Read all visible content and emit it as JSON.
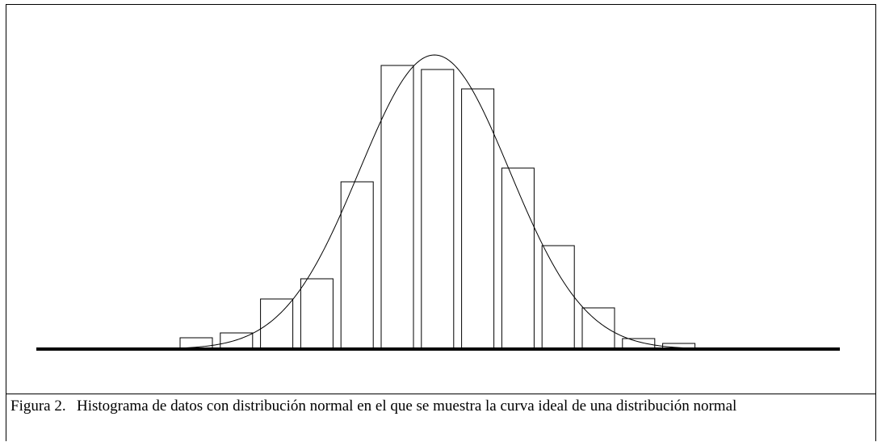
{
  "chart_data": {
    "type": "histogram",
    "values": [
      14,
      20,
      62,
      87,
      207,
      351,
      346,
      322,
      224,
      128,
      51,
      13,
      7
    ],
    "color": "#ffffff",
    "edge_color": "#000000",
    "caption_label": "Figura 2.",
    "caption": "Histograma de datos con distribución normal en el que se muestra la curva ideal de una distribución normal"
  }
}
